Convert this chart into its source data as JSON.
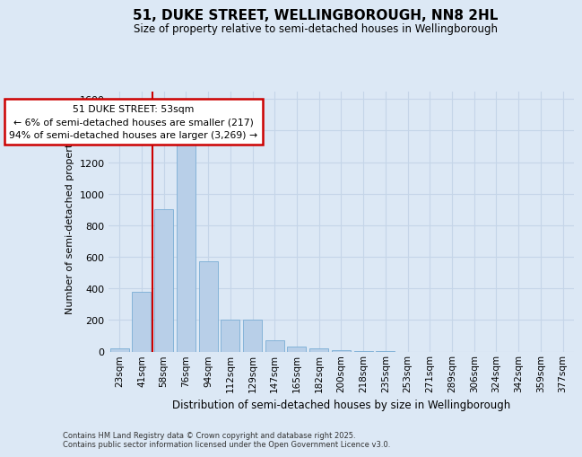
{
  "title": "51, DUKE STREET, WELLINGBOROUGH, NN8 2HL",
  "subtitle": "Size of property relative to semi-detached houses in Wellingborough",
  "xlabel": "Distribution of semi-detached houses by size in Wellingborough",
  "ylabel": "Number of semi-detached properties",
  "categories": [
    "23sqm",
    "41sqm",
    "58sqm",
    "76sqm",
    "94sqm",
    "112sqm",
    "129sqm",
    "147sqm",
    "165sqm",
    "182sqm",
    "200sqm",
    "218sqm",
    "235sqm",
    "253sqm",
    "271sqm",
    "289sqm",
    "306sqm",
    "324sqm",
    "342sqm",
    "359sqm",
    "377sqm"
  ],
  "bar_heights": [
    20,
    380,
    900,
    1310,
    570,
    200,
    200,
    70,
    30,
    20,
    8,
    5,
    5,
    0,
    0,
    0,
    0,
    0,
    0,
    0,
    0
  ],
  "bar_color": "#b8cfe8",
  "bar_edge_color": "#7aadd4",
  "grid_color": "#c5d5e8",
  "background_color": "#dce8f5",
  "red_line_color": "#cc0000",
  "red_line_x": 1.5,
  "annotation_text": "51 DUKE STREET: 53sqm\n← 6% of semi-detached houses are smaller (217)\n94% of semi-detached houses are larger (3,269) →",
  "annotation_box_facecolor": "#ffffff",
  "annotation_box_edgecolor": "#cc0000",
  "ylim": [
    0,
    1650
  ],
  "yticks": [
    0,
    200,
    400,
    600,
    800,
    1000,
    1200,
    1400,
    1600
  ],
  "footnote": "Contains HM Land Registry data © Crown copyright and database right 2025.\nContains public sector information licensed under the Open Government Licence v3.0."
}
